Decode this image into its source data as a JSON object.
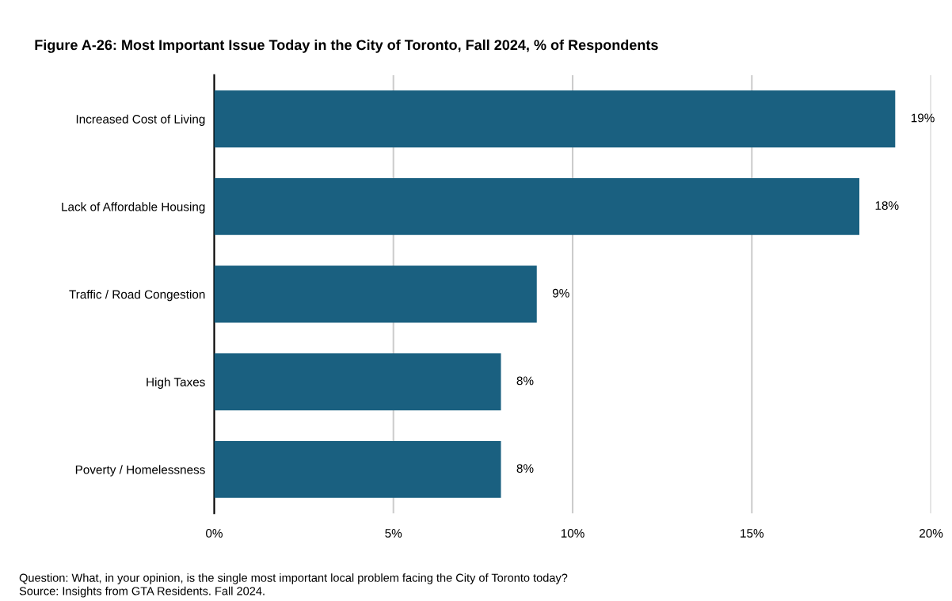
{
  "chart_data": {
    "type": "bar",
    "orientation": "horizontal",
    "title": "Figure A-26: Most Important Issue Today in the City of Toronto, Fall 2024, % of Respondents",
    "categories": [
      "Increased Cost of Living",
      "Lack of Affordable Housing",
      "Traffic / Road Congestion",
      "High Taxes",
      "Poverty / Homelessness"
    ],
    "values": [
      19,
      18,
      9,
      8,
      8
    ],
    "value_labels": [
      "19%",
      "18%",
      "9%",
      "8%",
      "8%"
    ],
    "color": "#1a6080",
    "xlim": [
      0,
      20
    ],
    "xticks": [
      {
        "value": 0,
        "label": "0%"
      },
      {
        "value": 5,
        "label": "5%"
      },
      {
        "value": 10,
        "label": "10%"
      },
      {
        "value": 15,
        "label": "15%"
      },
      {
        "value": 20,
        "label": "20%"
      }
    ],
    "grid": "x",
    "annotations": [
      "Question: What, in your opinion, is the single most important local problem facing the City of Toronto today?",
      "Source: Insights from GTA Residents. Fall 2024."
    ]
  }
}
